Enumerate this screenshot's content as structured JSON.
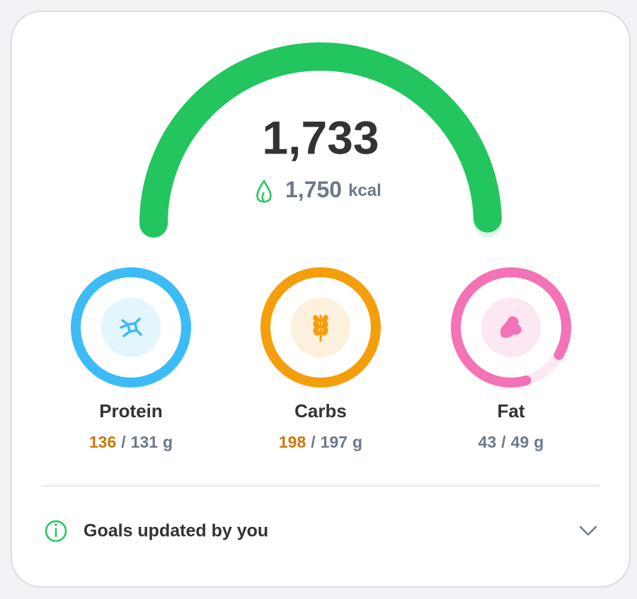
{
  "summary": {
    "consumed": "1,733",
    "goal": "1,750",
    "unit": "kcal"
  },
  "macros": [
    {
      "name": "Protein",
      "consumed": 136,
      "goal": 131,
      "unit": "g",
      "color": "#3dbbf5",
      "light": "#e3f5fd"
    },
    {
      "name": "Carbs",
      "consumed": 198,
      "goal": 197,
      "unit": "g",
      "color": "#f59e0b",
      "light": "#fdf0dc"
    },
    {
      "name": "Fat",
      "consumed": 43,
      "goal": 49,
      "unit": "g",
      "color": "#f472b6",
      "light": "#fde7f2"
    }
  ],
  "separator": "/",
  "footer": {
    "text": "Goals updated by you"
  }
}
